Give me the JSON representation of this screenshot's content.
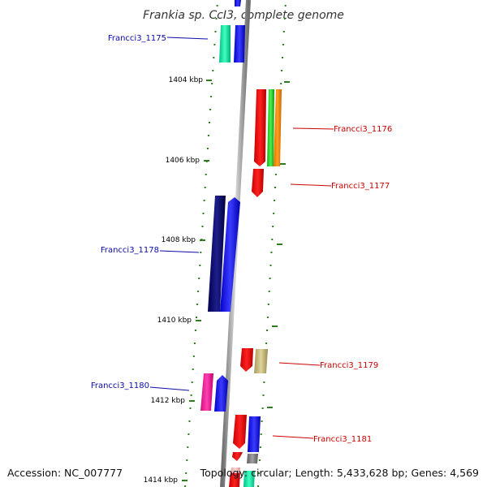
{
  "title": "Frankia sp. CcI3, complete genome",
  "footer": {
    "accession": "Accession: NC_007777",
    "topology": "Topology: circular; Length: 5,433,628 bp; Genes: 4,569"
  },
  "ruler_labels": [
    "1404 kbp",
    "1406 kbp",
    "1408 kbp",
    "1410 kbp",
    "1412 kbp",
    "1414 kbp"
  ],
  "gene_labels": [
    {
      "text": "Francci3_1175",
      "strand": "reverse"
    },
    {
      "text": "Francci3_1176",
      "strand": "forward"
    },
    {
      "text": "Francci3_1177",
      "strand": "forward"
    },
    {
      "text": "Francci3_1178",
      "strand": "reverse"
    },
    {
      "text": "Francci3_1179",
      "strand": "forward"
    },
    {
      "text": "Francci3_1180",
      "strand": "reverse"
    },
    {
      "text": "Francci3_1181",
      "strand": "forward"
    }
  ],
  "colors": {
    "reverse_label": "#0a0aaa",
    "forward_label": "#cc0000",
    "backbone": "#8c8c8c",
    "tick": "#2e7d1e"
  }
}
